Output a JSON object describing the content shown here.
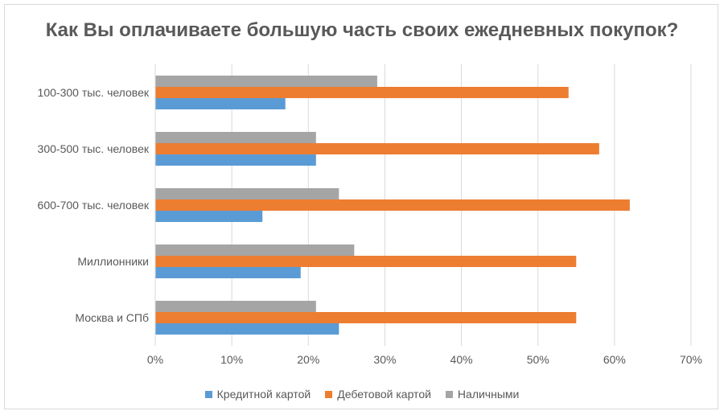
{
  "chart_data": {
    "type": "bar",
    "orientation": "horizontal",
    "title": "Как Вы оплачиваете большую часть своих ежедневных покупок?",
    "categories": [
      "100-300 тыс. человек",
      "300-500 тыс. человек",
      "600-700 тыс. человек",
      "Миллионники",
      "Москва и СПб"
    ],
    "series": [
      {
        "name": "Кредитной картой",
        "color": "#5b9bd5",
        "values": [
          17,
          21,
          14,
          19,
          24
        ]
      },
      {
        "name": "Дебетовой картой",
        "color": "#ed7d31",
        "values": [
          54,
          58,
          62,
          55,
          55
        ]
      },
      {
        "name": "Наличными",
        "color": "#a5a5a5",
        "values": [
          29,
          21,
          24,
          26,
          21
        ]
      }
    ],
    "xlim": [
      0,
      70
    ],
    "xticks": [
      "0%",
      "10%",
      "20%",
      "30%",
      "40%",
      "50%",
      "60%",
      "70%"
    ],
    "grid": true,
    "legend_position": "bottom"
  }
}
